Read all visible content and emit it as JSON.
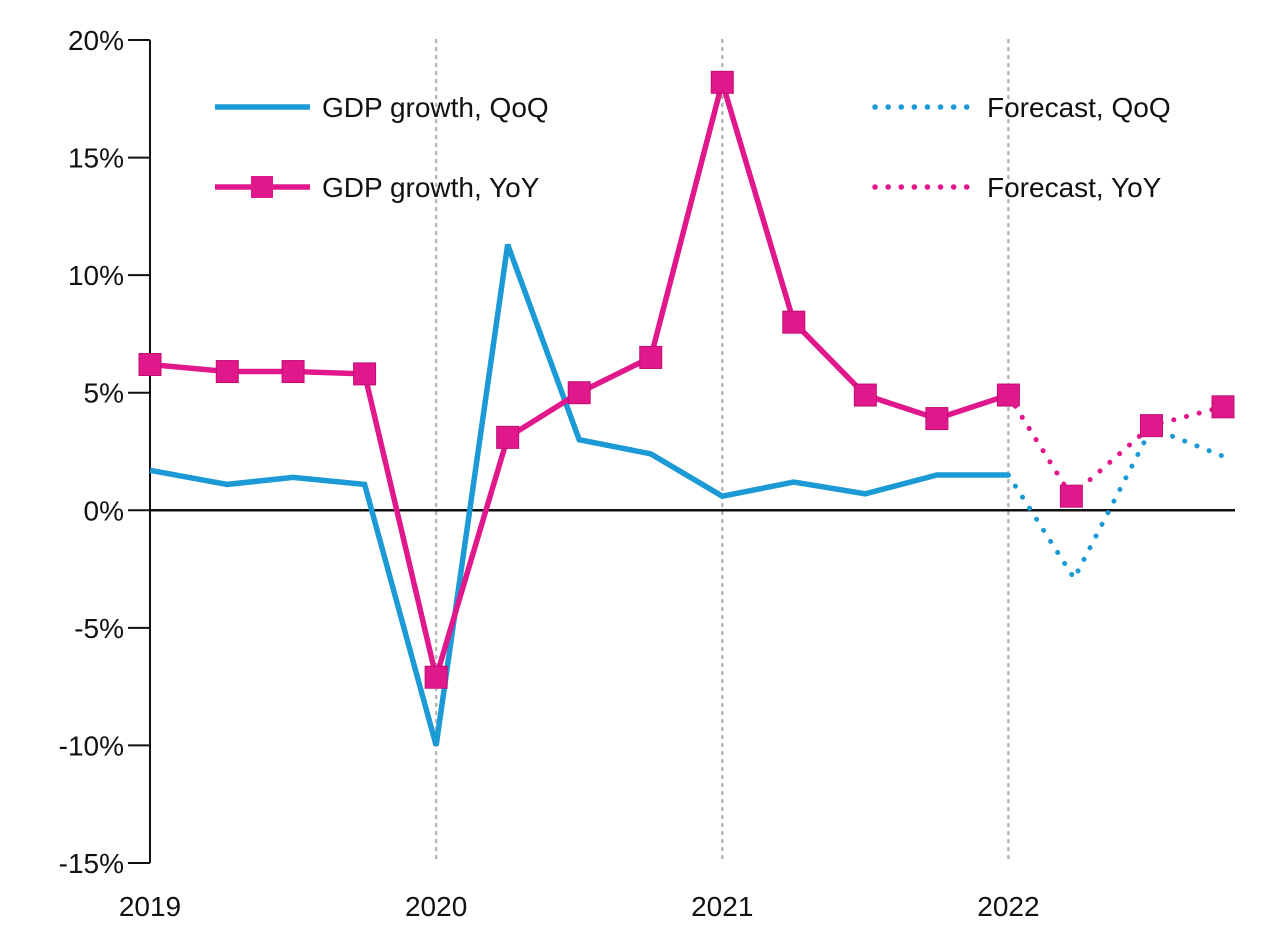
{
  "chart_data": {
    "type": "line",
    "title": "",
    "xlabel": "",
    "ylabel": "",
    "x": [
      "2019 Q1",
      "2019 Q2",
      "2019 Q3",
      "2019 Q4",
      "2020 Q1",
      "2020 Q2",
      "2020 Q3",
      "2020 Q4",
      "2021 Q1",
      "2021 Q2",
      "2021 Q3",
      "2021 Q4",
      "2022 Q1",
      "2022 Q2",
      "2022 Q3",
      "2022 Q4"
    ],
    "x_tick_labels": [
      "2019",
      "2020",
      "2021",
      "2022"
    ],
    "y_tick_labels": [
      "20%",
      "15%",
      "10%",
      "5%",
      "0%",
      "-5%",
      "-10%",
      "-15%"
    ],
    "y_ticks": [
      20,
      15,
      10,
      5,
      0,
      -5,
      -10,
      -15
    ],
    "ylim": [
      -15,
      20
    ],
    "x_range": [
      2019.0,
      2022.75
    ],
    "vertical_gridlines_at": [
      2020,
      2021,
      2022
    ],
    "grid": "dotted vertical lines at year boundaries",
    "legend_placement": "top",
    "series": [
      {
        "name": "GDP growth, QoQ",
        "style": "solid",
        "color": "#1b9ad6",
        "x": [
          2019.0,
          2019.27,
          2019.5,
          2019.75,
          2020.0,
          2020.25,
          2020.5,
          2020.75,
          2021.0,
          2021.25,
          2021.5,
          2021.75,
          2022.0
        ],
        "values": [
          1.7,
          1.1,
          1.4,
          1.1,
          -10.0,
          11.3,
          3.0,
          2.4,
          0.6,
          1.2,
          0.7,
          1.5,
          1.5
        ]
      },
      {
        "name": "GDP growth, YoY",
        "style": "solid-markers",
        "color": "#e0188c",
        "x": [
          2019.0,
          2019.27,
          2019.5,
          2019.75,
          2020.0,
          2020.25,
          2020.5,
          2020.75,
          2021.0,
          2021.25,
          2021.5,
          2021.75,
          2022.0
        ],
        "values": [
          6.2,
          5.9,
          5.9,
          5.8,
          -7.1,
          3.1,
          5.0,
          6.5,
          18.2,
          8.0,
          4.9,
          3.9,
          4.9
        ]
      },
      {
        "name": "Forecast, QoQ",
        "style": "dotted",
        "color": "#1b9ad6",
        "x": [
          2022.0,
          2022.23,
          2022.5,
          2022.75
        ],
        "values": [
          1.5,
          -2.9,
          3.5,
          2.3
        ]
      },
      {
        "name": "Forecast, YoY",
        "style": "dotted-markers",
        "color": "#e0188c",
        "x": [
          2022.0,
          2022.22,
          2022.5,
          2022.75
        ],
        "values": [
          4.9,
          0.6,
          3.6,
          4.4
        ]
      }
    ]
  }
}
